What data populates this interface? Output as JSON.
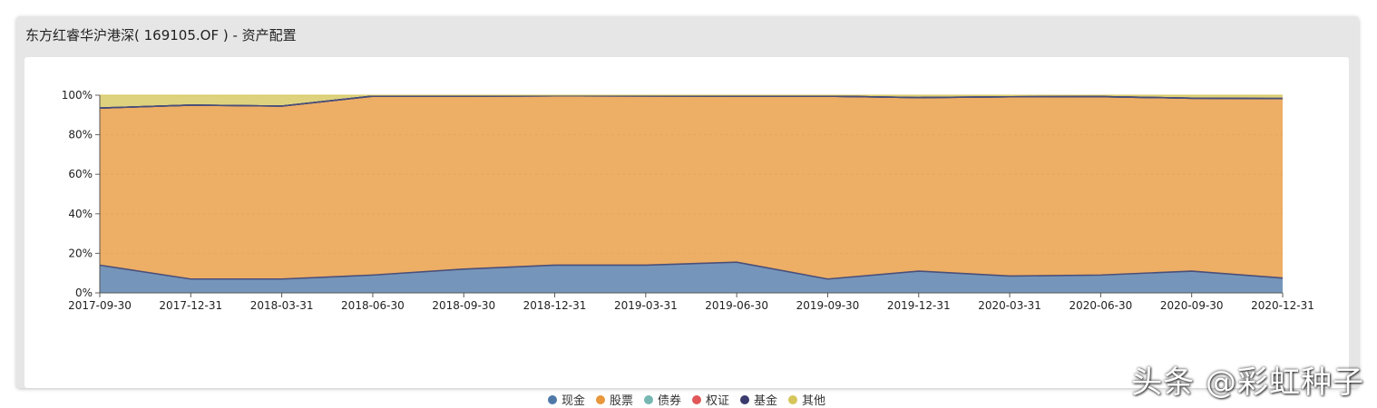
{
  "panel": {
    "title": "东方红睿华沪港深( 169105.OF ) - 资产配置"
  },
  "watermark": "头条 @彩虹种子",
  "chart_data": {
    "type": "area",
    "stacked": true,
    "categories": [
      "2017-09-30",
      "2017-12-31",
      "2018-03-31",
      "2018-06-30",
      "2018-09-30",
      "2018-12-31",
      "2019-03-31",
      "2019-06-30",
      "2019-09-30",
      "2019-12-31",
      "2020-03-31",
      "2020-06-30",
      "2020-09-30",
      "2020-12-31"
    ],
    "ylim": [
      0,
      100
    ],
    "yticks": [
      "0%",
      "20%",
      "40%",
      "60%",
      "80%",
      "100%"
    ],
    "series": [
      {
        "name": "现金",
        "color": "#4e79a7",
        "values": [
          14,
          7,
          7,
          9,
          12,
          14,
          14,
          15.5,
          7,
          11,
          8.5,
          9,
          11,
          7.5
        ]
      },
      {
        "name": "股票",
        "color": "#e8973a",
        "values": [
          79.5,
          88,
          87.5,
          90.5,
          87.5,
          85.7,
          85.6,
          84,
          92.5,
          87.8,
          90.7,
          90.3,
          87.5,
          90.8
        ]
      },
      {
        "name": "债券",
        "color": "#76b7b2",
        "values": [
          0,
          0,
          0,
          0,
          0,
          0,
          0,
          0,
          0,
          0,
          0,
          0,
          0,
          0
        ]
      },
      {
        "name": "权证",
        "color": "#e15759",
        "values": [
          0,
          0,
          0,
          0,
          0,
          0,
          0,
          0,
          0,
          0,
          0,
          0,
          0,
          0
        ]
      },
      {
        "name": "基金",
        "color": "#3b3b6e",
        "values": [
          0,
          0,
          0,
          0,
          0,
          0,
          0,
          0,
          0,
          0,
          0,
          0,
          0,
          0
        ]
      },
      {
        "name": "其他",
        "color": "#d6c55a",
        "values": [
          6.5,
          5,
          5.5,
          0.5,
          0.5,
          0.3,
          0.4,
          0.5,
          0.5,
          1.2,
          0.8,
          0.7,
          1.5,
          1.7
        ]
      }
    ]
  }
}
